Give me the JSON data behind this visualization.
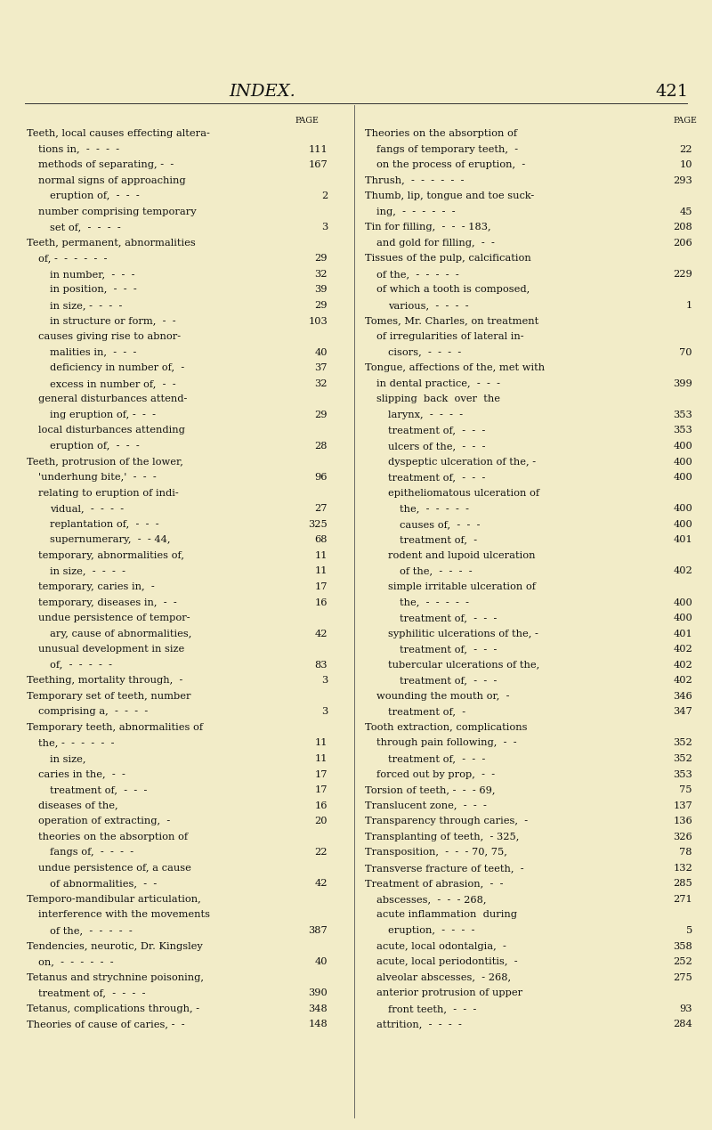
{
  "background_color": "#f2ecc8",
  "page_title": "INDEX.",
  "page_number": "421",
  "title_fontsize": 14,
  "body_fontsize": 8.2,
  "small_fontsize": 6.8,
  "left_column": [
    {
      "indent": 0,
      "text": "Teeth, local causes effecting altera-",
      "page": ""
    },
    {
      "indent": 1,
      "text": "tions in,  -  -  -  -",
      "page": "111"
    },
    {
      "indent": 1,
      "text": "methods of separating, -  -",
      "page": "167"
    },
    {
      "indent": 1,
      "text": "normal signs of approaching",
      "page": ""
    },
    {
      "indent": 2,
      "text": "eruption of,  -  -  -",
      "page": "2"
    },
    {
      "indent": 1,
      "text": "number comprising temporary",
      "page": ""
    },
    {
      "indent": 2,
      "text": "set of,  -  -  -  -",
      "page": "3"
    },
    {
      "indent": 0,
      "text": "Teeth, permanent, abnormalities",
      "page": ""
    },
    {
      "indent": 1,
      "text": "of, -  -  -  -  -  -",
      "page": "29"
    },
    {
      "indent": 2,
      "text": "in number,  -  -  -",
      "page": "32"
    },
    {
      "indent": 2,
      "text": "in position,  -  -  -",
      "page": "39"
    },
    {
      "indent": 2,
      "text": "in size, -  -  -  -",
      "page": "29"
    },
    {
      "indent": 2,
      "text": "in structure or form,  -  -",
      "page": "103"
    },
    {
      "indent": 1,
      "text": "causes giving rise to abnor-",
      "page": ""
    },
    {
      "indent": 2,
      "text": "malities in,  -  -  -",
      "page": "40"
    },
    {
      "indent": 2,
      "text": "deficiency in number of,  -",
      "page": "37"
    },
    {
      "indent": 2,
      "text": "excess in number of,  -  -",
      "page": "32"
    },
    {
      "indent": 1,
      "text": "general disturbances attend-",
      "page": ""
    },
    {
      "indent": 2,
      "text": "ing eruption of, -  -  -",
      "page": "29"
    },
    {
      "indent": 1,
      "text": "local disturbances attending",
      "page": ""
    },
    {
      "indent": 2,
      "text": "eruption of,  -  -  -",
      "page": "28"
    },
    {
      "indent": 0,
      "text": "Teeth, protrusion of the lower,",
      "page": ""
    },
    {
      "indent": 1,
      "text": "'underhung bite,'  -  -  -",
      "page": "96"
    },
    {
      "indent": 1,
      "text": "relating to eruption of indi-",
      "page": ""
    },
    {
      "indent": 2,
      "text": "vidual,  -  -  -  -",
      "page": "27"
    },
    {
      "indent": 2,
      "text": "replantation of,  -  -  -",
      "page": "325"
    },
    {
      "indent": 2,
      "text": "supernumerary,  -  - 44,",
      "page": "68"
    },
    {
      "indent": 1,
      "text": "temporary, abnormalities of,",
      "page": "11"
    },
    {
      "indent": 2,
      "text": "in size,  -  -  -  -",
      "page": "11"
    },
    {
      "indent": 1,
      "text": "temporary, caries in,  -",
      "page": "17"
    },
    {
      "indent": 1,
      "text": "temporary, diseases in,  -  -",
      "page": "16"
    },
    {
      "indent": 1,
      "text": "undue persistence of tempor-",
      "page": ""
    },
    {
      "indent": 2,
      "text": "ary, cause of abnormalities,",
      "page": "42"
    },
    {
      "indent": 1,
      "text": "unusual development in size",
      "page": ""
    },
    {
      "indent": 2,
      "text": "of,  -  -  -  -  -",
      "page": "83"
    },
    {
      "indent": 0,
      "text": "Teething, mortality through,  -",
      "page": "3"
    },
    {
      "indent": 0,
      "text": "Temporary set of teeth, number",
      "page": ""
    },
    {
      "indent": 1,
      "text": "comprising a,  -  -  -  -",
      "page": "3"
    },
    {
      "indent": 0,
      "text": "Temporary teeth, abnormalities of",
      "page": ""
    },
    {
      "indent": 1,
      "text": "the, -  -  -  -  -  -",
      "page": "11"
    },
    {
      "indent": 2,
      "text": "in size,",
      "page": "11"
    },
    {
      "indent": 1,
      "text": "caries in the,  -  -",
      "page": "17"
    },
    {
      "indent": 2,
      "text": "treatment of,  -  -  -",
      "page": "17"
    },
    {
      "indent": 1,
      "text": "diseases of the,",
      "page": "16"
    },
    {
      "indent": 1,
      "text": "operation of extracting,  -",
      "page": "20"
    },
    {
      "indent": 1,
      "text": "theories on the absorption of",
      "page": ""
    },
    {
      "indent": 2,
      "text": "fangs of,  -  -  -  -",
      "page": "22"
    },
    {
      "indent": 1,
      "text": "undue persistence of, a cause",
      "page": ""
    },
    {
      "indent": 2,
      "text": "of abnormalities,  -  -",
      "page": "42"
    },
    {
      "indent": 0,
      "text": "Temporo-mandibular articulation,",
      "page": ""
    },
    {
      "indent": 1,
      "text": "interference with the movements",
      "page": ""
    },
    {
      "indent": 2,
      "text": "of the,  -  -  -  -  -",
      "page": "387"
    },
    {
      "indent": 0,
      "text": "Tendencies, neurotic, Dr. Kingsley",
      "page": ""
    },
    {
      "indent": 1,
      "text": "on,  -  -  -  -  -  -",
      "page": "40"
    },
    {
      "indent": 0,
      "text": "Tetanus and strychnine poisoning,",
      "page": ""
    },
    {
      "indent": 1,
      "text": "treatment of,  -  -  -  -",
      "page": "390"
    },
    {
      "indent": 0,
      "text": "Tetanus, complications through, -",
      "page": "348"
    },
    {
      "indent": 0,
      "text": "Theories of cause of caries, -  -",
      "page": "148"
    }
  ],
  "right_column": [
    {
      "indent": 0,
      "text": "Theories on the absorption of",
      "page": ""
    },
    {
      "indent": 1,
      "text": "fangs of temporary teeth,  -",
      "page": "22"
    },
    {
      "indent": 1,
      "text": "on the process of eruption,  -",
      "page": "10"
    },
    {
      "indent": 0,
      "text": "Thrush,  -  -  -  -  -  -",
      "page": "293"
    },
    {
      "indent": 0,
      "text": "Thumb, lip, tongue and toe suck-",
      "page": ""
    },
    {
      "indent": 1,
      "text": "ing,  -  -  -  -  -  -",
      "page": "45"
    },
    {
      "indent": 0,
      "text": "Tin for filling,  -  -  - 183,",
      "page": "208"
    },
    {
      "indent": 1,
      "text": "and gold for filling,  -  -",
      "page": "206"
    },
    {
      "indent": 0,
      "text": "Tissues of the pulp, calcification",
      "page": ""
    },
    {
      "indent": 1,
      "text": "of the,  -  -  -  -  -",
      "page": "229"
    },
    {
      "indent": 1,
      "text": "of which a tooth is composed,",
      "page": ""
    },
    {
      "indent": 2,
      "text": "various,  -  -  -  -",
      "page": "1"
    },
    {
      "indent": 0,
      "text": "Tomes, Mr. Charles, on treatment",
      "page": ""
    },
    {
      "indent": 1,
      "text": "of irregularities of lateral in-",
      "page": ""
    },
    {
      "indent": 2,
      "text": "cisors,  -  -  -  -",
      "page": "70"
    },
    {
      "indent": 0,
      "text": "Tongue, affections of the, met with",
      "page": ""
    },
    {
      "indent": 1,
      "text": "in dental practice,  -  -  -",
      "page": "399"
    },
    {
      "indent": 1,
      "text": "slipping  back  over  the",
      "page": ""
    },
    {
      "indent": 2,
      "text": "larynx,  -  -  -  -",
      "page": "353"
    },
    {
      "indent": 2,
      "text": "treatment of,  -  -  -",
      "page": "353"
    },
    {
      "indent": 2,
      "text": "ulcers of the,  -  -  -",
      "page": "400"
    },
    {
      "indent": 2,
      "text": "dyspeptic ulceration of the, -",
      "page": "400"
    },
    {
      "indent": 2,
      "text": "treatment of,  -  -  -",
      "page": "400"
    },
    {
      "indent": 2,
      "text": "epitheliomatous ulceration of",
      "page": ""
    },
    {
      "indent": 3,
      "text": "the,  -  -  -  -  -",
      "page": "400"
    },
    {
      "indent": 3,
      "text": "causes of,  -  -  -",
      "page": "400"
    },
    {
      "indent": 3,
      "text": "treatment of,  -",
      "page": "401"
    },
    {
      "indent": 2,
      "text": "rodent and lupoid ulceration",
      "page": ""
    },
    {
      "indent": 3,
      "text": "of the,  -  -  -  -",
      "page": "402"
    },
    {
      "indent": 2,
      "text": "simple irritable ulceration of",
      "page": ""
    },
    {
      "indent": 3,
      "text": "the,  -  -  -  -  -",
      "page": "400"
    },
    {
      "indent": 3,
      "text": "treatment of,  -  -  -",
      "page": "400"
    },
    {
      "indent": 2,
      "text": "syphilitic ulcerations of the, -",
      "page": "401"
    },
    {
      "indent": 3,
      "text": "treatment of,  -  -  -",
      "page": "402"
    },
    {
      "indent": 2,
      "text": "tubercular ulcerations of the,",
      "page": "402"
    },
    {
      "indent": 3,
      "text": "treatment of,  -  -  -",
      "page": "402"
    },
    {
      "indent": 1,
      "text": "wounding the mouth or,  -",
      "page": "346"
    },
    {
      "indent": 2,
      "text": "treatment of,  -",
      "page": "347"
    },
    {
      "indent": 0,
      "text": "Tooth extraction, complications",
      "page": ""
    },
    {
      "indent": 1,
      "text": "through pain following,  -  -",
      "page": "352"
    },
    {
      "indent": 2,
      "text": "treatment of,  -  -  -",
      "page": "352"
    },
    {
      "indent": 1,
      "text": "forced out by prop,  -  -",
      "page": "353"
    },
    {
      "indent": 0,
      "text": "Torsion of teeth, -  -  - 69,",
      "page": "75"
    },
    {
      "indent": 0,
      "text": "Translucent zone,  -  -  -",
      "page": "137"
    },
    {
      "indent": 0,
      "text": "Transparency through caries,  -",
      "page": "136"
    },
    {
      "indent": 0,
      "text": "Transplanting of teeth,  - 325,",
      "page": "326"
    },
    {
      "indent": 0,
      "text": "Transposition,  -  -  - 70, 75,",
      "page": "78"
    },
    {
      "indent": 0,
      "text": "Transverse fracture of teeth,  -",
      "page": "132"
    },
    {
      "indent": 0,
      "text": "Treatment of abrasion,  -  -",
      "page": "285"
    },
    {
      "indent": 1,
      "text": "abscesses,  -  -  - 268,",
      "page": "271"
    },
    {
      "indent": 1,
      "text": "acute inflammation  during",
      "page": ""
    },
    {
      "indent": 2,
      "text": "eruption,  -  -  -  -",
      "page": "5"
    },
    {
      "indent": 1,
      "text": "acute, local odontalgia,  -",
      "page": "358"
    },
    {
      "indent": 1,
      "text": "acute, local periodontitis,  -",
      "page": "252"
    },
    {
      "indent": 1,
      "text": "alveolar abscesses,  - 268,",
      "page": "275"
    },
    {
      "indent": 1,
      "text": "anterior protrusion of upper",
      "page": ""
    },
    {
      "indent": 2,
      "text": "front teeth,  -  -  -",
      "page": "93"
    },
    {
      "indent": 1,
      "text": "attrition,  -  -  -  -",
      "page": "284"
    }
  ]
}
